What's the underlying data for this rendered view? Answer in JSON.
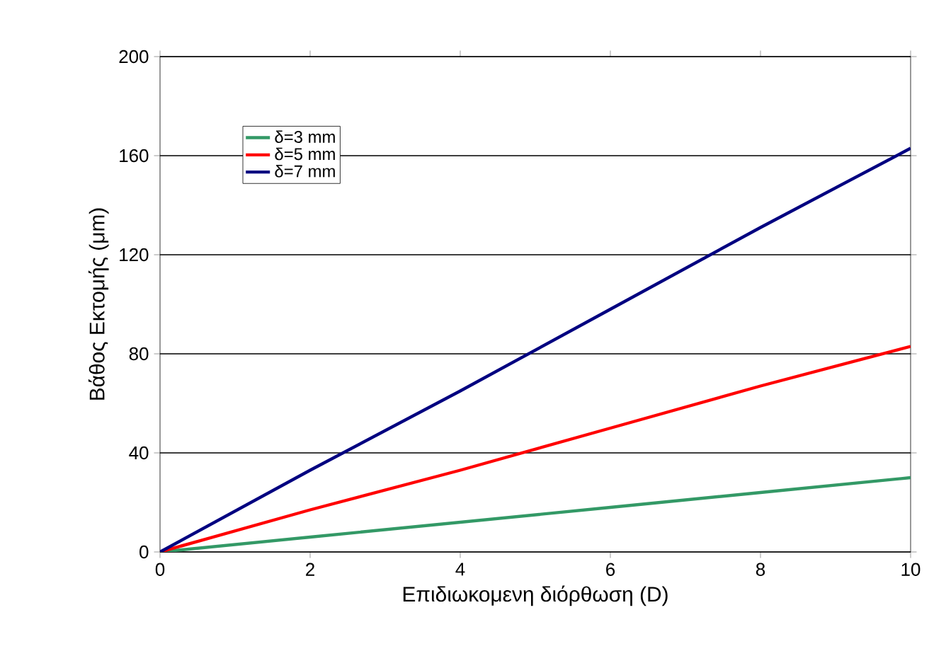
{
  "chart_data": {
    "type": "line",
    "xlabel": "Επιδιωκομενη διόρθωση (D)",
    "ylabel": "Βάθος Εκτομής (μm)",
    "x": [
      0,
      2,
      4,
      6,
      8,
      10
    ],
    "series": [
      {
        "name": "δ=3 mm",
        "color": "#339966",
        "values": [
          0,
          6,
          12,
          18,
          24,
          30
        ]
      },
      {
        "name": "δ=5 mm",
        "color": "#ff0000",
        "values": [
          0,
          17,
          33,
          50,
          67,
          83
        ]
      },
      {
        "name": "δ=7 mm",
        "color": "#000080",
        "values": [
          0,
          33,
          65,
          98,
          131,
          163
        ]
      }
    ],
    "xlim": [
      0,
      10
    ],
    "ylim": [
      0,
      200
    ],
    "xticks": [
      0,
      2,
      4,
      6,
      8,
      10
    ],
    "yticks": [
      0,
      40,
      80,
      120,
      160,
      200
    ],
    "grid": "y",
    "legend": "top left",
    "marker": "none",
    "line_style": "solid"
  }
}
